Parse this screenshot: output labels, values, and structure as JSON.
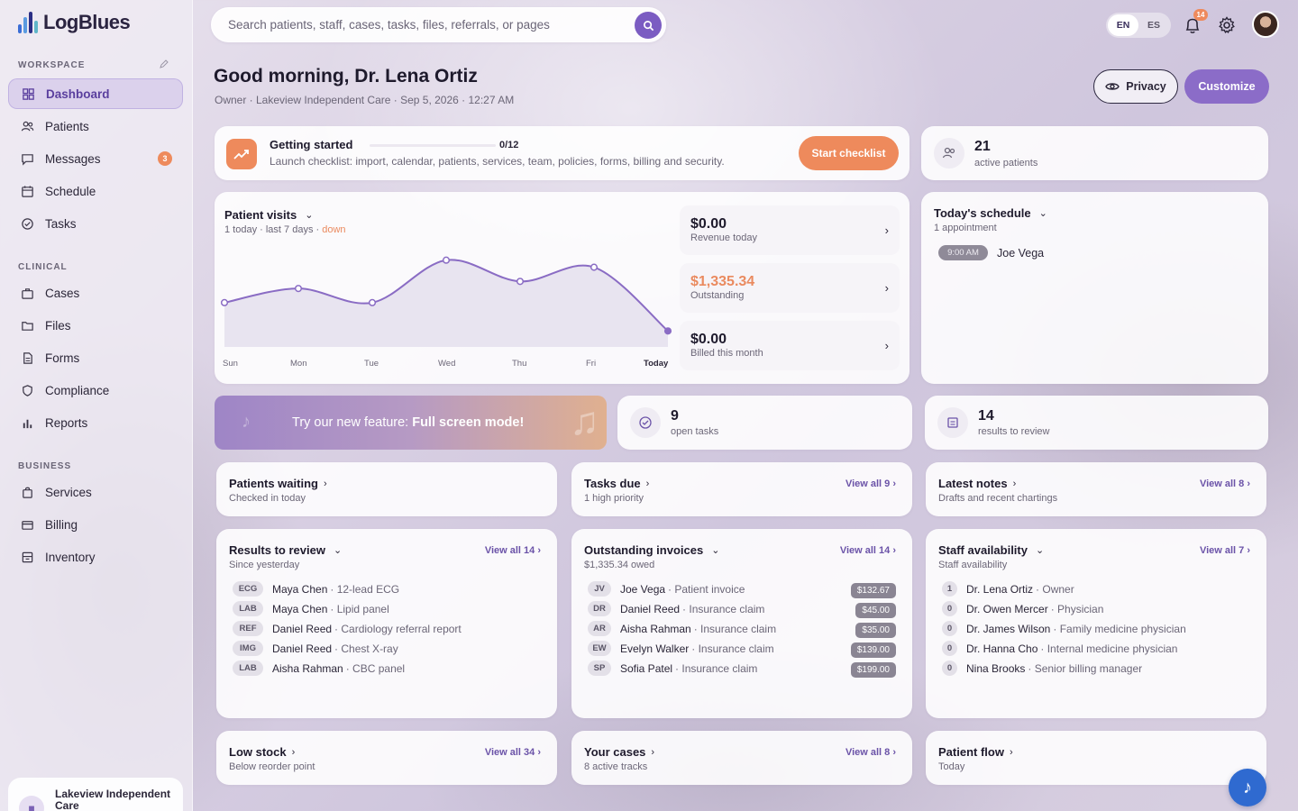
{
  "brand": {
    "name": "LogBlues",
    "bar_colors": [
      "#3b6ed6",
      "#5a9be0",
      "#2b2f86",
      "#5fb6c9"
    ]
  },
  "sidebar": {
    "workspace_title": "WORKSPACE",
    "clinical_title": "CLINICAL",
    "business_title": "BUSINESS",
    "items": [
      {
        "label": "Dashboard",
        "icon": "grid-icon",
        "active": true
      },
      {
        "label": "Patients",
        "icon": "users-icon"
      },
      {
        "label": "Messages",
        "icon": "message-icon",
        "badge": "3"
      },
      {
        "label": "Schedule",
        "icon": "calendar-icon"
      },
      {
        "label": "Tasks",
        "icon": "check-circle-icon"
      },
      {
        "label": "Cases",
        "icon": "briefcase-icon"
      },
      {
        "label": "Files",
        "icon": "folder-icon"
      },
      {
        "label": "Forms",
        "icon": "document-icon"
      },
      {
        "label": "Compliance",
        "icon": "shield-icon"
      },
      {
        "label": "Reports",
        "icon": "bar-chart-icon"
      },
      {
        "label": "Services",
        "icon": "bag-icon"
      },
      {
        "label": "Billing",
        "icon": "card-icon"
      },
      {
        "label": "Inventory",
        "icon": "archive-icon"
      }
    ],
    "org": "Lakeview Independent Care"
  },
  "topbar": {
    "search_placeholder": "Search patients, staff, cases, tasks, files, referrals, or pages",
    "lang_en": "EN",
    "lang_es": "ES",
    "notifications": "14"
  },
  "header": {
    "greeting": "Good morning, Dr. Lena Ortiz",
    "subline": "Owner · Lakeview Independent Care · Sep 5, 2026 · 12:27 AM",
    "privacy": "Privacy",
    "customize": "Customize"
  },
  "getting_started": {
    "title": "Getting started",
    "progress": "0/12",
    "progress_fraction": 0,
    "desc": "Launch checklist: import, calendar, patients, services, team, policies, forms, billing and security.",
    "button": "Start checklist"
  },
  "active_patients": {
    "count": "21",
    "label": "active patients"
  },
  "visits": {
    "title": "Patient visits",
    "sub_a": "1 today · last 7 days · ",
    "sub_trend": "down"
  },
  "chart_data": {
    "type": "line",
    "categories": [
      "Sun",
      "Mon",
      "Tue",
      "Wed",
      "Thu",
      "Fri",
      "Today"
    ],
    "series": [
      {
        "values": [
          3,
          4,
          3,
          6,
          4.5,
          5.5,
          1
        ]
      }
    ],
    "title": "Patient visits",
    "xlabel": "",
    "ylabel": "",
    "ylim": [
      0,
      7
    ],
    "grid": false
  },
  "money": [
    {
      "value": "$0.00",
      "label": "Revenue today",
      "color": "#1e1a2c"
    },
    {
      "value": "$1,335.34",
      "label": "Outstanding",
      "color": "#ea8a5f"
    },
    {
      "value": "$0.00",
      "label": "Billed this month",
      "color": "#1e1a2c"
    }
  ],
  "schedule": {
    "title": "Today's schedule",
    "sub": "1 appointment",
    "time": "9:00 AM",
    "patient": "Joe Vega"
  },
  "promo": {
    "text": "Try our new feature:",
    "bold": "Full screen mode!"
  },
  "open_tasks": {
    "count": "9",
    "label": "open tasks"
  },
  "results_review": {
    "count": "14",
    "label": "results to review"
  },
  "patients_waiting": {
    "title": "Patients waiting",
    "sub": "Checked in today"
  },
  "tasks_due": {
    "title": "Tasks due",
    "sub": "1 high priority",
    "view": "View all 9"
  },
  "latest_notes": {
    "title": "Latest notes",
    "sub": "Drafts and recent chartings",
    "view": "View all 8"
  },
  "results": {
    "title": "Results to review",
    "sub": "Since yesterday",
    "view": "View all 14",
    "rows": [
      {
        "tag": "ECG",
        "name": "Maya Chen",
        "detail": "· 12-lead ECG"
      },
      {
        "tag": "LAB",
        "name": "Maya Chen",
        "detail": "· Lipid panel"
      },
      {
        "tag": "REF",
        "name": "Daniel Reed",
        "detail": "· Cardiology referral report"
      },
      {
        "tag": "IMG",
        "name": "Daniel Reed",
        "detail": "· Chest X-ray"
      },
      {
        "tag": "LAB",
        "name": "Aisha Rahman",
        "detail": "· CBC panel"
      }
    ]
  },
  "invoices": {
    "title": "Outstanding invoices",
    "sub": "$1,335.34 owed",
    "view": "View all 14",
    "rows": [
      {
        "tag": "JV",
        "name": "Joe Vega",
        "detail": "· Patient invoice",
        "amount": "$132.67"
      },
      {
        "tag": "DR",
        "name": "Daniel Reed",
        "detail": "· Insurance claim",
        "amount": "$45.00"
      },
      {
        "tag": "AR",
        "name": "Aisha Rahman",
        "detail": "· Insurance claim",
        "amount": "$35.00"
      },
      {
        "tag": "EW",
        "name": "Evelyn Walker",
        "detail": "· Insurance claim",
        "amount": "$139.00"
      },
      {
        "tag": "SP",
        "name": "Sofia Patel",
        "detail": "· Insurance claim",
        "amount": "$199.00"
      }
    ]
  },
  "staff": {
    "title": "Staff availability",
    "sub": "Staff availability",
    "view": "View all 7",
    "rows": [
      {
        "tag": "1",
        "name": "Dr. Lena Ortiz",
        "detail": "· Owner"
      },
      {
        "tag": "0",
        "name": "Dr. Owen Mercer",
        "detail": "· Physician"
      },
      {
        "tag": "0",
        "name": "Dr. James Wilson",
        "detail": "· Family medicine physician"
      },
      {
        "tag": "0",
        "name": "Dr. Hanna Cho",
        "detail": "· Internal medicine physician"
      },
      {
        "tag": "0",
        "name": "Nina Brooks",
        "detail": "· Senior billing manager"
      }
    ]
  },
  "low_stock": {
    "title": "Low stock",
    "sub": "Below reorder point",
    "view": "View all 34"
  },
  "your_cases": {
    "title": "Your cases",
    "sub": "8 active tracks",
    "view": "View all 8"
  },
  "patient_flow": {
    "title": "Patient flow",
    "sub": "Today"
  }
}
